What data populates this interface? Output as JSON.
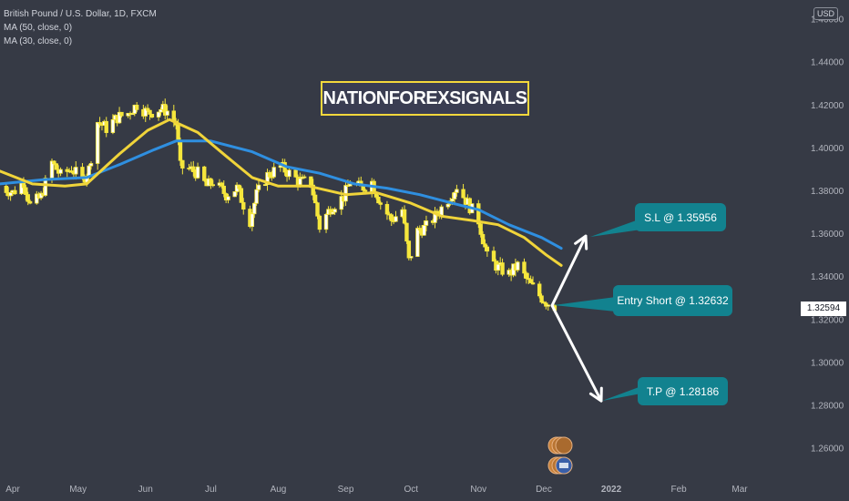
{
  "legend": {
    "title": "British Pound / U.S. Dollar, 1D, FXCM",
    "ma50": "MA (50, close, 0)",
    "ma30": "MA (30, close, 0)"
  },
  "brand_label": "NATIONFOREXSIGNALS",
  "currency_button": "USD",
  "current_price": "1.32594",
  "callouts": {
    "stop_loss": "S.L @ 1.35956",
    "entry": "Entry Short @ 1.32632",
    "take_profit": "T.P @ 1.28186"
  },
  "colors": {
    "background": "#363a45",
    "candle": "#f5e63c",
    "ma50": "#2f8fe0",
    "ma30": "#f0d43a",
    "callout": "#12828f",
    "arrow": "#ffffff"
  },
  "chart_data": {
    "type": "candlestick",
    "ylim": [
      1.25,
      1.46
    ],
    "y_ticks": [
      "1.26000",
      "1.28000",
      "1.30000",
      "1.32000",
      "1.34000",
      "1.36000",
      "1.38000",
      "1.40000",
      "1.42000",
      "1.44000",
      "1.46000"
    ],
    "x_ticks": [
      "Apr",
      "May",
      "Jun",
      "Jul",
      "Aug",
      "Sep",
      "Oct",
      "Nov",
      "Dec",
      "2022",
      "Feb",
      "Mar"
    ],
    "x_tick_dates": [
      "2021-04-01",
      "2021-05-01",
      "2021-06-01",
      "2021-07-01",
      "2021-08-01",
      "2021-09-01",
      "2021-10-01",
      "2021-11-01",
      "2021-12-01",
      "2022-01-01",
      "2022-02-01",
      "2022-03-01"
    ],
    "x_range": [
      "2021-03-25",
      "2022-03-10"
    ],
    "close_points": [
      [
        "2021-03-26",
        1.382
      ],
      [
        "2021-04-01",
        1.379
      ],
      [
        "2021-04-06",
        1.384
      ],
      [
        "2021-04-09",
        1.373
      ],
      [
        "2021-04-14",
        1.377
      ],
      [
        "2021-04-19",
        1.393
      ],
      [
        "2021-04-23",
        1.387
      ],
      [
        "2021-04-28",
        1.39
      ],
      [
        "2021-05-03",
        1.385
      ],
      [
        "2021-05-06",
        1.39
      ],
      [
        "2021-05-10",
        1.412
      ],
      [
        "2021-05-14",
        1.409
      ],
      [
        "2021-05-19",
        1.414
      ],
      [
        "2021-05-24",
        1.416
      ],
      [
        "2021-05-28",
        1.42
      ],
      [
        "2021-06-02",
        1.416
      ],
      [
        "2021-06-08",
        1.418
      ],
      [
        "2021-06-11",
        1.417
      ],
      [
        "2021-06-15",
        1.411
      ],
      [
        "2021-06-17",
        1.391
      ],
      [
        "2021-06-21",
        1.39
      ],
      [
        "2021-06-25",
        1.388
      ],
      [
        "2021-06-29",
        1.382
      ],
      [
        "2021-07-02",
        1.384
      ],
      [
        "2021-07-08",
        1.378
      ],
      [
        "2021-07-13",
        1.381
      ],
      [
        "2021-07-19",
        1.366
      ],
      [
        "2021-07-22",
        1.378
      ],
      [
        "2021-07-27",
        1.387
      ],
      [
        "2021-08-02",
        1.391
      ],
      [
        "2021-08-06",
        1.388
      ],
      [
        "2021-08-11",
        1.384
      ],
      [
        "2021-08-16",
        1.384
      ],
      [
        "2021-08-20",
        1.363
      ],
      [
        "2021-08-25",
        1.372
      ],
      [
        "2021-08-31",
        1.377
      ],
      [
        "2021-09-03",
        1.384
      ],
      [
        "2021-09-08",
        1.381
      ],
      [
        "2021-09-13",
        1.384
      ],
      [
        "2021-09-17",
        1.374
      ],
      [
        "2021-09-22",
        1.366
      ],
      [
        "2021-09-27",
        1.371
      ],
      [
        "2021-09-30",
        1.347
      ],
      [
        "2021-10-04",
        1.361
      ],
      [
        "2021-10-08",
        1.363
      ],
      [
        "2021-10-13",
        1.369
      ],
      [
        "2021-10-18",
        1.376
      ],
      [
        "2021-10-22",
        1.382
      ],
      [
        "2021-10-27",
        1.374
      ],
      [
        "2021-11-01",
        1.366
      ],
      [
        "2021-11-05",
        1.349
      ],
      [
        "2021-11-10",
        1.344
      ],
      [
        "2021-11-15",
        1.341
      ],
      [
        "2021-11-19",
        1.345
      ],
      [
        "2021-11-24",
        1.337
      ],
      [
        "2021-11-29",
        1.331
      ],
      [
        "2021-12-02",
        1.328
      ],
      [
        "2021-12-06",
        1.326
      ]
    ],
    "series": [
      {
        "name": "MA (50, close, 0)",
        "points": [
          [
            "2021-03-26",
            1.383
          ],
          [
            "2021-04-15",
            1.385
          ],
          [
            "2021-05-05",
            1.386
          ],
          [
            "2021-05-20",
            1.392
          ],
          [
            "2021-06-05",
            1.399
          ],
          [
            "2021-06-15",
            1.403
          ],
          [
            "2021-07-01",
            1.403
          ],
          [
            "2021-07-20",
            1.398
          ],
          [
            "2021-08-05",
            1.391
          ],
          [
            "2021-08-20",
            1.388
          ],
          [
            "2021-09-05",
            1.383
          ],
          [
            "2021-09-20",
            1.381
          ],
          [
            "2021-10-05",
            1.378
          ],
          [
            "2021-10-20",
            1.374
          ],
          [
            "2021-11-01",
            1.371
          ],
          [
            "2021-11-15",
            1.364
          ],
          [
            "2021-11-30",
            1.358
          ],
          [
            "2021-12-09",
            1.353
          ]
        ]
      },
      {
        "name": "MA (30, close, 0)",
        "points": [
          [
            "2021-03-26",
            1.389
          ],
          [
            "2021-04-10",
            1.383
          ],
          [
            "2021-04-25",
            1.382
          ],
          [
            "2021-05-05",
            1.383
          ],
          [
            "2021-05-20",
            1.397
          ],
          [
            "2021-06-02",
            1.408
          ],
          [
            "2021-06-12",
            1.413
          ],
          [
            "2021-06-25",
            1.407
          ],
          [
            "2021-07-08",
            1.396
          ],
          [
            "2021-07-20",
            1.386
          ],
          [
            "2021-08-01",
            1.382
          ],
          [
            "2021-08-15",
            1.382
          ],
          [
            "2021-09-01",
            1.378
          ],
          [
            "2021-09-15",
            1.379
          ],
          [
            "2021-10-01",
            1.374
          ],
          [
            "2021-10-15",
            1.368
          ],
          [
            "2021-10-29",
            1.366
          ],
          [
            "2021-11-10",
            1.364
          ],
          [
            "2021-11-22",
            1.358
          ],
          [
            "2021-12-02",
            1.35
          ],
          [
            "2021-12-09",
            1.345
          ]
        ]
      }
    ],
    "annotations": [
      {
        "label": "S.L @ 1.35956",
        "price": 1.35956
      },
      {
        "label": "Entry Short @ 1.32632",
        "price": 1.32632
      },
      {
        "label": "T.P @ 1.28186",
        "price": 1.28186
      }
    ],
    "grid": false
  }
}
